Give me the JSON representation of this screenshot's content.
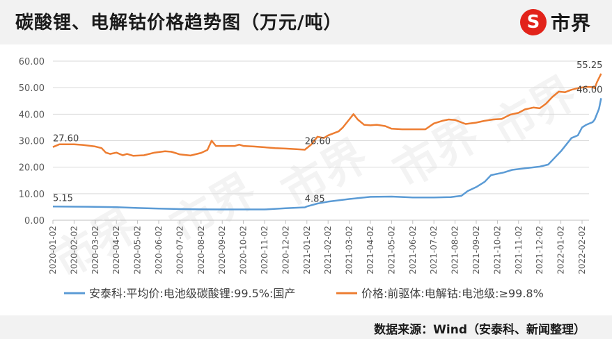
{
  "header": {
    "title": "碳酸锂、电解钴价格趋势图（万元/吨）"
  },
  "logo": {
    "mark": "S",
    "text": "市界",
    "color": "#e2231a"
  },
  "watermark": "市界",
  "footer": {
    "source": "数据来源：Wind（安泰科、新闻整理）"
  },
  "chart_data": {
    "type": "line",
    "ylim": [
      0,
      60
    ],
    "yticks": [
      "0.00",
      "10.00",
      "20.00",
      "30.00",
      "40.00",
      "50.00",
      "60.00"
    ],
    "xticks": [
      "2020-01-02",
      "2020-02-02",
      "2020-03-02",
      "2020-04-02",
      "2020-05-02",
      "2020-06-02",
      "2020-07-02",
      "2020-08-02",
      "2020-09-02",
      "2020-10-02",
      "2020-11-02",
      "2020-12-02",
      "2021-01-02",
      "2021-02-02",
      "2021-03-02",
      "2021-04-02",
      "2021-05-02",
      "2021-06-02",
      "2021-07-02",
      "2021-08-02",
      "2021-09-02",
      "2021-10-02",
      "2021-11-02",
      "2021-12-02",
      "2022-01-02",
      "2022-02-02"
    ],
    "xlim": [
      0,
      25.9
    ],
    "grid": true,
    "legend_position": "bottom",
    "series": [
      {
        "name": "安泰科:平均价:电池级碳酸锂:99.5%:国产",
        "color": "#5b9bd5",
        "points": [
          [
            0,
            5.15
          ],
          [
            1,
            5.1
          ],
          [
            2,
            5.05
          ],
          [
            3,
            4.9
          ],
          [
            4,
            4.6
          ],
          [
            5,
            4.4
          ],
          [
            6,
            4.2
          ],
          [
            7,
            4.1
          ],
          [
            8,
            4.05
          ],
          [
            9,
            4.05
          ],
          [
            10,
            4.05
          ],
          [
            11,
            4.5
          ],
          [
            11.9,
            4.85
          ],
          [
            12,
            5.2
          ],
          [
            12.5,
            6.3
          ],
          [
            13,
            7
          ],
          [
            14,
            8
          ],
          [
            14.5,
            8.4
          ],
          [
            15,
            8.8
          ],
          [
            16,
            8.9
          ],
          [
            17,
            8.6
          ],
          [
            18,
            8.6
          ],
          [
            18.8,
            8.7
          ],
          [
            19.3,
            9.2
          ],
          [
            19.6,
            11
          ],
          [
            20,
            12.5
          ],
          [
            20.4,
            14.5
          ],
          [
            20.7,
            17
          ],
          [
            21.3,
            18
          ],
          [
            21.7,
            19
          ],
          [
            22.3,
            19.6
          ],
          [
            23,
            20.2
          ],
          [
            23.4,
            21
          ],
          [
            23.7,
            23.5
          ],
          [
            24,
            26
          ],
          [
            24.5,
            31
          ],
          [
            24.8,
            32
          ],
          [
            25,
            35
          ],
          [
            25.2,
            36
          ],
          [
            25.5,
            37
          ],
          [
            25.6,
            38
          ],
          [
            25.8,
            42
          ],
          [
            25.9,
            46
          ]
        ]
      },
      {
        "name": "价格:前驱体:电解钴:电池级:≥99.8%",
        "color": "#ed7d31",
        "points": [
          [
            0,
            27.6
          ],
          [
            0.3,
            28.6
          ],
          [
            1,
            28.6
          ],
          [
            1.4,
            28.4
          ],
          [
            2,
            27.8
          ],
          [
            2.3,
            27.2
          ],
          [
            2.5,
            25.5
          ],
          [
            2.7,
            25
          ],
          [
            3,
            25.5
          ],
          [
            3.3,
            24.5
          ],
          [
            3.5,
            25
          ],
          [
            3.8,
            24.3
          ],
          [
            4.3,
            24.5
          ],
          [
            4.8,
            25.5
          ],
          [
            5.3,
            26
          ],
          [
            5.6,
            25.8
          ],
          [
            6,
            24.8
          ],
          [
            6.5,
            24.4
          ],
          [
            7,
            25.4
          ],
          [
            7.3,
            26.5
          ],
          [
            7.5,
            30
          ],
          [
            7.7,
            28
          ],
          [
            8,
            28
          ],
          [
            8.6,
            28
          ],
          [
            8.8,
            28.5
          ],
          [
            9,
            28
          ],
          [
            9.5,
            27.8
          ],
          [
            10,
            27.5
          ],
          [
            10.5,
            27.2
          ],
          [
            11,
            27
          ],
          [
            11.5,
            26.8
          ],
          [
            11.9,
            26.6
          ],
          [
            12.2,
            28.5
          ],
          [
            12.5,
            31.5
          ],
          [
            12.8,
            31
          ],
          [
            13,
            32
          ],
          [
            13.5,
            33.5
          ],
          [
            13.7,
            35
          ],
          [
            14,
            38
          ],
          [
            14.2,
            40
          ],
          [
            14.4,
            38
          ],
          [
            14.7,
            36
          ],
          [
            15,
            35.8
          ],
          [
            15.3,
            36
          ],
          [
            15.7,
            35.5
          ],
          [
            16,
            34.5
          ],
          [
            16.5,
            34.3
          ],
          [
            17,
            34.3
          ],
          [
            17.6,
            34.3
          ],
          [
            18,
            36.5
          ],
          [
            18.4,
            37.5
          ],
          [
            18.7,
            38
          ],
          [
            19,
            37.8
          ],
          [
            19.5,
            36.3
          ],
          [
            20,
            36.8
          ],
          [
            20.4,
            37.5
          ],
          [
            20.8,
            38
          ],
          [
            21.2,
            38.2
          ],
          [
            21.6,
            39.8
          ],
          [
            22,
            40.5
          ],
          [
            22.3,
            41.8
          ],
          [
            22.7,
            42.5
          ],
          [
            23,
            42.2
          ],
          [
            23.3,
            44
          ],
          [
            23.6,
            46.5
          ],
          [
            23.9,
            48.5
          ],
          [
            24.2,
            48.3
          ],
          [
            24.5,
            49.2
          ],
          [
            24.8,
            49.8
          ],
          [
            25.2,
            50.3
          ],
          [
            25.5,
            50.2
          ],
          [
            25.6,
            49.8
          ],
          [
            25.7,
            52
          ],
          [
            25.9,
            55.25
          ]
        ]
      }
    ],
    "annotations": [
      {
        "text": "27.60",
        "x": 0,
        "y": 27.6,
        "series": 1
      },
      {
        "text": "5.15",
        "x": 0,
        "y": 5.15,
        "series": 0
      },
      {
        "text": "26.60",
        "x": 11.9,
        "y": 26.6,
        "series": 1
      },
      {
        "text": "4.85",
        "x": 11.9,
        "y": 4.85,
        "series": 0
      },
      {
        "text": "55.25",
        "x": 25.9,
        "y": 55.25,
        "series": 1
      },
      {
        "text": "46.00",
        "x": 25.9,
        "y": 46.0,
        "series": 0
      }
    ]
  }
}
